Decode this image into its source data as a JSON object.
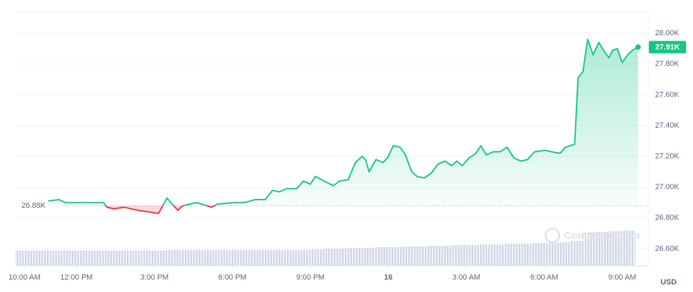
{
  "chart_data": {
    "type": "line",
    "x": [
      10.91,
      11.31,
      11.58,
      12.24,
      13.04,
      13.17,
      13.43,
      13.83,
      14.36,
      14.76,
      15.16,
      15.29,
      15.48,
      15.69,
      15.9,
      16.09,
      16.62,
      17.02,
      17.2,
      17.42,
      18.08,
      18.48,
      18.88,
      19.27,
      19.54,
      19.81,
      20.07,
      20.47,
      20.73,
      21.0,
      21.19,
      21.53,
      21.88,
      22.12,
      22.46,
      22.73,
      22.99,
      23.12,
      23.26,
      23.52,
      23.79,
      23.97,
      24.19,
      24.45,
      24.66,
      24.9,
      25.11,
      25.38,
      25.65,
      25.91,
      26.18,
      26.44,
      26.63,
      26.84,
      27.11,
      27.37,
      27.56,
      27.77,
      28.04,
      28.3,
      28.57,
      28.83,
      29.1,
      29.36,
      29.63,
      30.03,
      30.29,
      30.61,
      30.82,
      31.17,
      31.3,
      31.49,
      31.67,
      31.88,
      32.1,
      32.28,
      32.49,
      32.63,
      32.81,
      33.0,
      33.21,
      33.4,
      33.61
    ],
    "values": [
      26.91,
      26.92,
      26.9,
      26.9,
      26.9,
      26.87,
      26.86,
      26.87,
      26.85,
      26.84,
      26.83,
      26.87,
      26.93,
      26.89,
      26.85,
      26.88,
      26.9,
      26.88,
      26.87,
      26.89,
      26.9,
      26.9,
      26.92,
      26.92,
      26.98,
      26.97,
      26.99,
      26.99,
      27.04,
      27.02,
      27.07,
      27.04,
      27.01,
      27.04,
      27.05,
      27.16,
      27.2,
      27.18,
      27.1,
      27.18,
      27.16,
      27.19,
      27.27,
      27.26,
      27.21,
      27.1,
      27.07,
      27.06,
      27.09,
      27.15,
      27.17,
      27.14,
      27.17,
      27.14,
      27.19,
      27.22,
      27.27,
      27.21,
      27.23,
      27.23,
      27.26,
      27.19,
      27.17,
      27.18,
      27.23,
      27.24,
      27.23,
      27.22,
      27.26,
      27.28,
      27.71,
      27.75,
      27.96,
      27.86,
      27.94,
      27.89,
      27.84,
      27.89,
      27.9,
      27.81,
      27.86,
      27.89,
      27.91
    ],
    "color_up": "#16c784",
    "color_down": "#ea3943",
    "baseline": {
      "value": 26.88,
      "label": "26.88K"
    },
    "current_price": {
      "value": 27.91,
      "label": "27.91K"
    },
    "xlim": [
      9.64,
      34.0
    ],
    "xticks": [
      {
        "value": 10,
        "label": "10:00 AM"
      },
      {
        "value": 12,
        "label": "12:00 PM"
      },
      {
        "value": 15,
        "label": "3:00 PM"
      },
      {
        "value": 18,
        "label": "6:00 PM"
      },
      {
        "value": 21,
        "label": "9:00 PM"
      },
      {
        "value": 24,
        "label": "16"
      },
      {
        "value": 27,
        "label": "3:00 AM"
      },
      {
        "value": 30,
        "label": "6:00 AM"
      },
      {
        "value": 33,
        "label": "9:00 AM"
      }
    ],
    "ylim": [
      26.49,
      28.135
    ],
    "yticks": [
      {
        "value": 28,
        "label": "28.00K"
      },
      {
        "value": 27.8,
        "label": "27.80K"
      },
      {
        "value": 27.6,
        "label": "27.60K"
      },
      {
        "value": 27.4,
        "label": "27.40K"
      },
      {
        "value": 27.2,
        "label": "27.20K"
      },
      {
        "value": 27,
        "label": "27.00K"
      },
      {
        "value": 26.8,
        "label": "26.80K"
      },
      {
        "value": 26.6,
        "label": "26.60K"
      }
    ],
    "grid": true,
    "y_unit": "USD",
    "watermark": "CoinMarketCap",
    "volume": {
      "color": "#cfd6e4",
      "ylim": [
        0,
        100
      ],
      "x": [
        9.75,
        10.25,
        10.75,
        11.25,
        11.75,
        12.25,
        12.75,
        13.25,
        13.75,
        14.25,
        14.75,
        15.25,
        15.75,
        16.25,
        16.75,
        17.25,
        17.75,
        18.25,
        18.75,
        19.25,
        19.75,
        20.25,
        20.75,
        21.25,
        21.75,
        22.25,
        22.75,
        23.25,
        23.75,
        24.25,
        24.75,
        25.25,
        25.75,
        26.25,
        26.75,
        27.25,
        27.75,
        28.25,
        28.75,
        29.25,
        29.75,
        30.25,
        30.75,
        31.25,
        31.75,
        32.25,
        32.75,
        33.25
      ],
      "values": [
        22,
        22,
        22,
        22,
        22,
        22,
        22,
        22,
        22,
        22,
        22,
        22,
        23,
        23,
        23,
        23,
        23,
        23,
        23,
        23,
        23,
        23,
        23,
        24,
        25,
        25,
        26,
        26,
        27,
        27,
        28,
        28,
        29,
        29,
        30,
        30,
        31,
        31,
        32,
        32,
        33,
        33,
        34,
        36,
        48,
        49,
        50,
        51
      ]
    }
  }
}
